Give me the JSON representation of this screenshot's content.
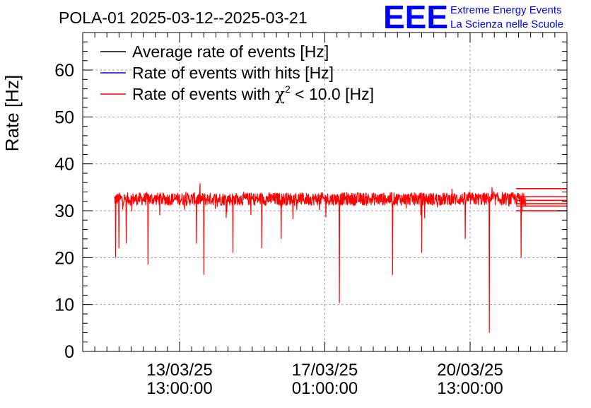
{
  "chart_data": {
    "type": "line",
    "title": "POLA-01 2025-03-12--2025-03-21",
    "ylabel": "Rate [Hz]",
    "xlabel": "",
    "ylim": [
      0,
      68
    ],
    "yticks": [
      0,
      10,
      20,
      30,
      40,
      50,
      60
    ],
    "xticks": [
      {
        "pos": 0.2,
        "line1": "13/03/25",
        "line2": "13:00:00"
      },
      {
        "pos": 0.5,
        "line1": "17/03/25",
        "line2": "01:00:00"
      },
      {
        "pos": 0.8,
        "line1": "20/03/25",
        "line2": "13:00:00"
      }
    ],
    "legend": {
      "placement": "top-left",
      "entries": [
        {
          "label": "Average rate of events [Hz]",
          "color": "#000000"
        },
        {
          "label": "Rate of events with hits [Hz]",
          "color": "#0000cc"
        },
        {
          "label_prefix": "Rate of events with ",
          "label_chi": "χ",
          "label_sup": "2",
          "label_suffix": " < 10.0 [Hz]",
          "color": "#ff0000"
        }
      ]
    },
    "series": [
      {
        "name": "Rate of events with χ2 < 10.0 [Hz]",
        "color": "#ff0000",
        "x_range": [
          0.065,
          0.915
        ],
        "baseline": 32.5,
        "noise": 1.4,
        "dips": [
          {
            "x": 0.068,
            "y": 20.0
          },
          {
            "x": 0.075,
            "y": 22.0
          },
          {
            "x": 0.09,
            "y": 23.0
          },
          {
            "x": 0.135,
            "y": 18.5
          },
          {
            "x": 0.235,
            "y": 23.0
          },
          {
            "x": 0.25,
            "y": 16.3
          },
          {
            "x": 0.31,
            "y": 21.0
          },
          {
            "x": 0.37,
            "y": 22.0
          },
          {
            "x": 0.41,
            "y": 24.0
          },
          {
            "x": 0.53,
            "y": 10.3
          },
          {
            "x": 0.64,
            "y": 16.3
          },
          {
            "x": 0.7,
            "y": 21.0
          },
          {
            "x": 0.79,
            "y": 24.0
          },
          {
            "x": 0.84,
            "y": 4.0
          },
          {
            "x": 0.905,
            "y": 20.0
          }
        ],
        "tail_lines": [
          34.7,
          33.0,
          32.2,
          31.5,
          31.0,
          30.0
        ]
      }
    ]
  },
  "brand": {
    "logo_text": "EEE",
    "line1": "Extreme Energy Events",
    "line2": "La Scienza nelle Scuole",
    "color": "#0000ff"
  }
}
